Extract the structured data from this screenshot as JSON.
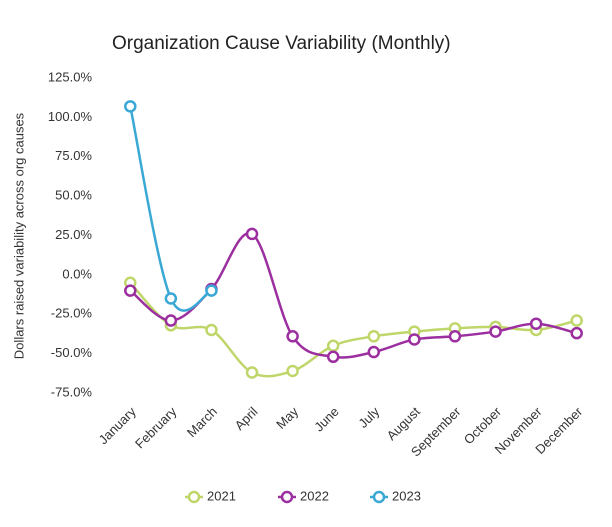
{
  "chart_data": {
    "type": "line",
    "title": "Organization Cause Variability (Monthly)",
    "y_label": "Dollars raised variability across org causes",
    "categories": [
      "January",
      "February",
      "March",
      "April",
      "May",
      "June",
      "July",
      "August",
      "September",
      "October",
      "November",
      "December"
    ],
    "series": [
      {
        "name": "2021",
        "color": "#bfd66a",
        "values": [
          -5,
          -32,
          -35,
          -62,
          -61,
          -45,
          -39,
          -36,
          -34,
          -33,
          -35,
          -29
        ]
      },
      {
        "name": "2022",
        "color": "#9c2f9f",
        "values": [
          -10,
          -29,
          -9,
          26,
          -39,
          -52,
          -49,
          -41,
          -39,
          -36,
          -31,
          -37
        ]
      },
      {
        "name": "2023",
        "color": "#3aa8d5",
        "values": [
          107,
          -15,
          -10,
          null,
          null,
          null,
          null,
          null,
          null,
          null,
          null,
          null
        ]
      }
    ],
    "ylim": [
      -75,
      125
    ],
    "yticks": [
      {
        "value": -75,
        "label": "-75.0%"
      },
      {
        "value": -50,
        "label": "-50.0%"
      },
      {
        "value": -25,
        "label": "-25.0%"
      },
      {
        "value": 0,
        "label": "0.0%"
      },
      {
        "value": 25,
        "label": "25.0%"
      },
      {
        "value": 50,
        "label": "50.0%"
      },
      {
        "value": 75,
        "label": "75.0%"
      },
      {
        "value": 100,
        "label": "100.0%"
      },
      {
        "value": 125,
        "label": "125.0%"
      }
    ],
    "grid": false,
    "legend": "bottom"
  }
}
